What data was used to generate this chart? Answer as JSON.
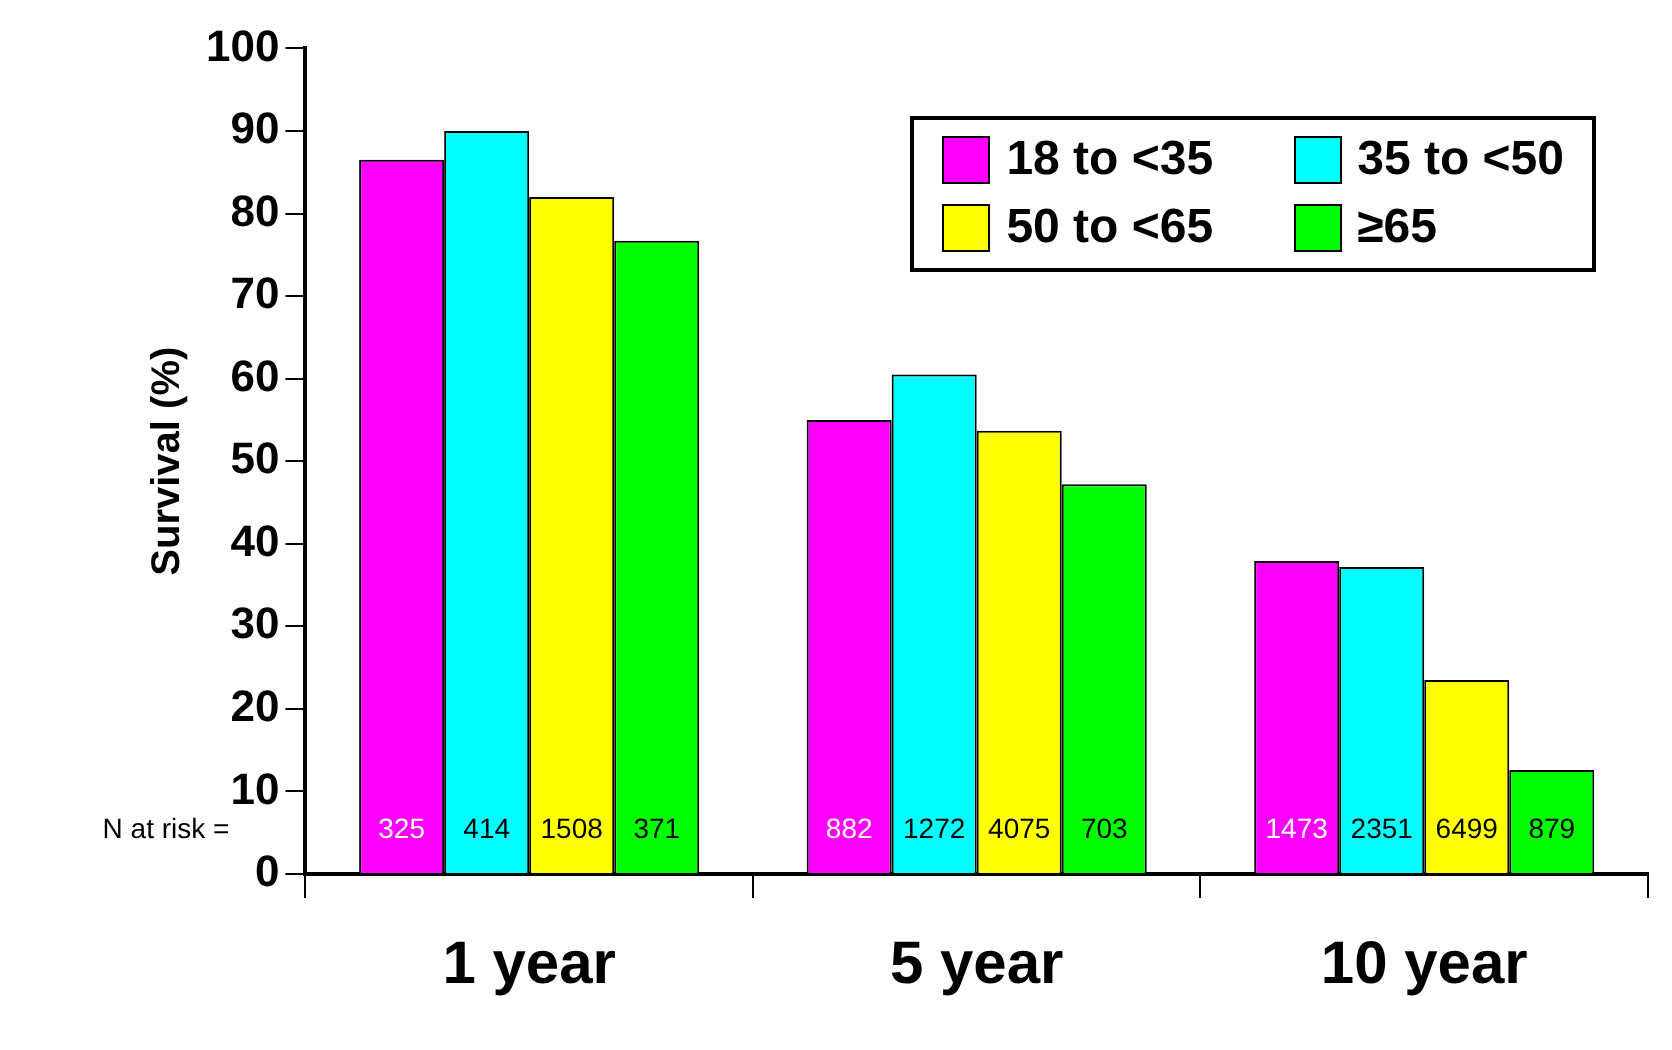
{
  "chart_data": {
    "type": "bar",
    "ylabel": "Survival (%)",
    "categories": [
      "1 year",
      "5 year",
      "10 year"
    ],
    "series": [
      {
        "name": "18 to <35",
        "color": "#ff00ff",
        "values": [
          86.5,
          55,
          37.9
        ]
      },
      {
        "name": "35 to <50",
        "color": "#00ffff",
        "values": [
          90,
          60.5,
          37.2
        ]
      },
      {
        "name": "50 to <65",
        "color": "#ffff00",
        "values": [
          82,
          53.7,
          23.5
        ]
      },
      {
        "name": "≥65",
        "color": "#00ff00",
        "values": [
          76.7,
          47.2,
          12.6
        ]
      }
    ],
    "ylim": [
      0,
      100
    ],
    "yticks": [
      0,
      10,
      20,
      30,
      40,
      50,
      60,
      70,
      80,
      90,
      100
    ],
    "grid": false,
    "legend": "top right",
    "annotations": [
      "N at risk =",
      "325",
      "414",
      "1508",
      "371",
      "882",
      "1272",
      "4075",
      "703",
      "1473",
      "2351",
      "6499",
      "879"
    ]
  }
}
